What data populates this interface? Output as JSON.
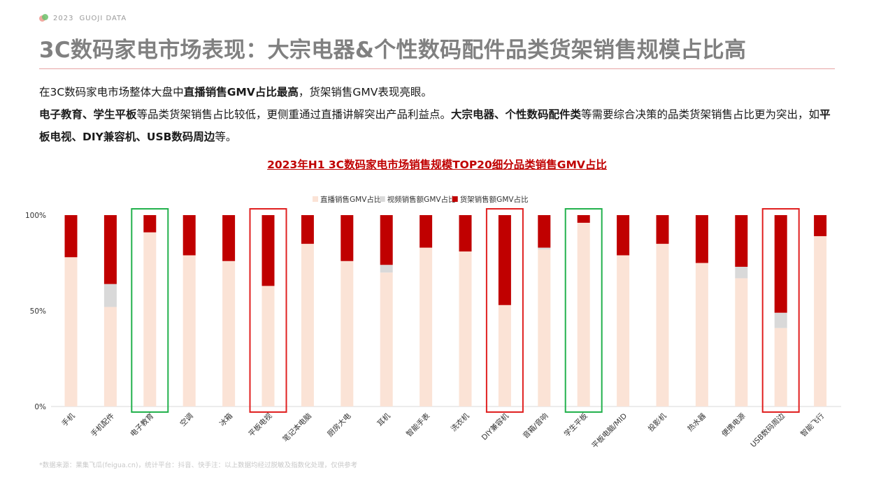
{
  "brand": {
    "year": "2023",
    "name": "GUOJI DATA"
  },
  "title": "3C数码家电市场表现：大宗电器&个性数码配件品类货架销售规模占比高",
  "paragraph1": {
    "t1": "在3C数码家电市场整体大盘中",
    "b1": "直播销售GMV占比最高",
    "t2": "，货架销售GMV表现亮眼。"
  },
  "paragraph2": {
    "b1": "电子教育、学生平板",
    "t1": "等品类货架销售占比较低，更侧重通过直播讲解突出产品利益点。",
    "b2": "大宗电器、个性数码配件类",
    "t2": "等需要综合决策的品类货架销售占比更为突出，如",
    "b3": "平板电视、DIY兼容机、USB数码周边",
    "t3": "等。"
  },
  "source": "*数据来源：果集飞瓜(feigua.cn)，统计平台：抖音、快手注：以上数据均经过脱敏及指数化处理，仅供参考",
  "colors": {
    "live": "#fbe3d6",
    "video": "#d9d9d9",
    "shelf": "#c00000",
    "green_box": "#22b14c",
    "red_box": "#e02020"
  },
  "chart_data": {
    "type": "bar",
    "stacked": true,
    "title": "2023年H1 3C数码家电市场销售规模TOP20细分品类销售GMV占比",
    "ylim": [
      0,
      100
    ],
    "yticks": [
      "0%",
      "50%",
      "100%"
    ],
    "legend_position": "top",
    "categories": [
      "手机",
      "手机配件",
      "电子教育",
      "空调",
      "冰箱",
      "平板电视",
      "笔记本电脑",
      "厨房大电",
      "耳机",
      "智能手表",
      "洗衣机",
      "DIY兼容机",
      "音箱/音响",
      "学生平板",
      "平板电脑/MID",
      "投影机",
      "热水器",
      "便携电源",
      "USB数码周边",
      "智能飞行"
    ],
    "series": [
      {
        "name": "直播销售GMV占比",
        "values": [
          78,
          52,
          91,
          79,
          76,
          63,
          85,
          76,
          70,
          83,
          81,
          53,
          82,
          96,
          79,
          85,
          75,
          67,
          41,
          89
        ]
      },
      {
        "name": "视频销售额GMV占比",
        "values": [
          0,
          12,
          0,
          0,
          0,
          0,
          0,
          0,
          4,
          0,
          0,
          0,
          1,
          0,
          0,
          0,
          0,
          6,
          8,
          0
        ]
      },
      {
        "name": "货架销售额GMV占比",
        "values": [
          22,
          36,
          9,
          21,
          24,
          37,
          15,
          24,
          26,
          17,
          19,
          47,
          17,
          4,
          21,
          15,
          25,
          27,
          51,
          11
        ]
      }
    ],
    "highlight_green": [
      "电子教育",
      "学生平板"
    ],
    "highlight_red": [
      "平板电视",
      "DIY兼容机",
      "USB数码周边"
    ]
  }
}
